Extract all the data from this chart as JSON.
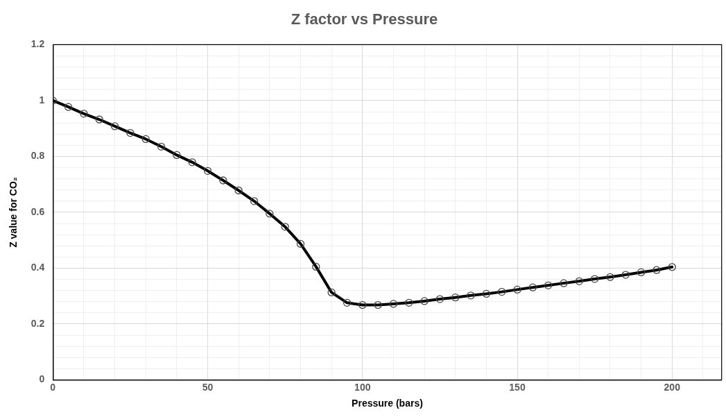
{
  "chart_data": {
    "type": "line",
    "title": "Z factor vs Pressure",
    "xlabel": "Pressure (bars)",
    "ylabel": "Z value for CO₂",
    "x": [
      0,
      5,
      10,
      15,
      20,
      25,
      30,
      35,
      40,
      45,
      50,
      55,
      60,
      65,
      70,
      75,
      80,
      85,
      90,
      95,
      100,
      105,
      110,
      115,
      120,
      125,
      130,
      135,
      140,
      145,
      150,
      155,
      160,
      165,
      170,
      175,
      180,
      185,
      190,
      195,
      200
    ],
    "series": [
      {
        "color": "#000000",
        "values": [
          1.0,
          0.977,
          0.953,
          0.932,
          0.908,
          0.884,
          0.862,
          0.835,
          0.805,
          0.779,
          0.748,
          0.714,
          0.678,
          0.64,
          0.595,
          0.548,
          0.487,
          0.405,
          0.313,
          0.276,
          0.268,
          0.268,
          0.272,
          0.276,
          0.282,
          0.289,
          0.295,
          0.302,
          0.308,
          0.315,
          0.323,
          0.331,
          0.338,
          0.346,
          0.353,
          0.361,
          0.368,
          0.376,
          0.385,
          0.393,
          0.404
        ]
      }
    ],
    "xlim": [
      0,
      216
    ],
    "xticks": [
      0,
      {
        "value": 10,
        "label": null
      },
      {
        "value": 20,
        "label": null
      },
      {
        "value": 30,
        "label": null
      },
      {
        "value": 40,
        "label": null
      },
      50,
      {
        "value": 60,
        "label": null
      },
      {
        "value": 70,
        "label": null
      },
      {
        "value": 80,
        "label": null
      },
      {
        "value": 90,
        "label": null
      },
      100,
      {
        "value": 110,
        "label": null
      },
      {
        "value": 120,
        "label": null
      },
      {
        "value": 130,
        "label": null
      },
      {
        "value": 140,
        "label": null
      },
      150,
      {
        "value": 160,
        "label": null
      },
      {
        "value": 170,
        "label": null
      },
      {
        "value": 180,
        "label": null
      },
      {
        "value": 190,
        "label": null
      },
      200,
      {
        "value": 210,
        "label": null
      }
    ],
    "ylim": [
      0,
      1.2
    ],
    "yticks": [
      0,
      {
        "value": 0.04,
        "label": null
      },
      {
        "value": 0.08,
        "label": null
      },
      {
        "value": 0.12,
        "label": null
      },
      {
        "value": 0.16,
        "label": null
      },
      0.2,
      {
        "value": 0.24,
        "label": null
      },
      {
        "value": 0.28,
        "label": null
      },
      {
        "value": 0.32,
        "label": null
      },
      {
        "value": 0.36,
        "label": null
      },
      0.4,
      {
        "value": 0.44,
        "label": null
      },
      {
        "value": 0.48,
        "label": null
      },
      {
        "value": 0.52,
        "label": null
      },
      {
        "value": 0.56,
        "label": null
      },
      0.6,
      {
        "value": 0.64,
        "label": null
      },
      {
        "value": 0.68,
        "label": null
      },
      {
        "value": 0.72,
        "label": null
      },
      {
        "value": 0.76,
        "label": null
      },
      0.8,
      {
        "value": 0.84,
        "label": null
      },
      {
        "value": 0.88,
        "label": null
      },
      {
        "value": 0.92,
        "label": null
      },
      {
        "value": 0.96,
        "label": null
      },
      1,
      {
        "value": 1.04,
        "label": null
      },
      {
        "value": 1.08,
        "label": null
      },
      {
        "value": 1.12,
        "label": null
      },
      {
        "value": 1.16,
        "label": null
      },
      1.2
    ],
    "grid": true,
    "legend": false,
    "marker": "circle",
    "line_style": "solid"
  }
}
